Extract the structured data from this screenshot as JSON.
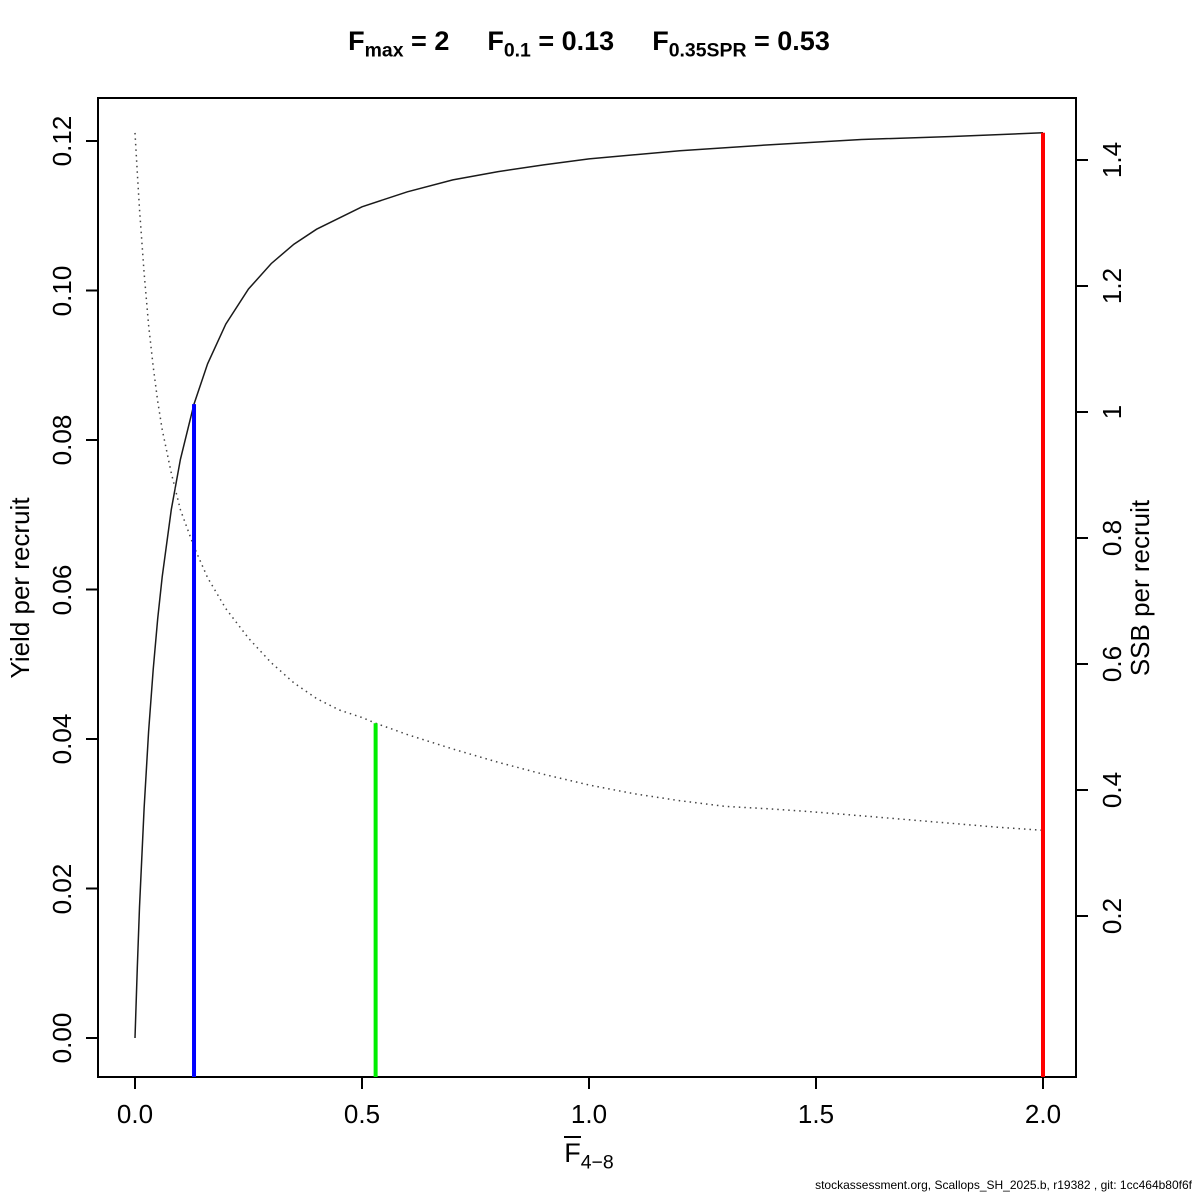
{
  "chart_data": {
    "type": "line",
    "title": {
      "eq": " = ",
      "parts": [
        {
          "base": "F",
          "sub": "max",
          "value": "2"
        },
        {
          "base": "F",
          "sub": "0.1",
          "value": "0.13"
        },
        {
          "base": "F",
          "sub": "0.35SPR",
          "value": "0.53"
        }
      ]
    },
    "xlabel": {
      "base": "F",
      "sub": "4−8",
      "overbar": true
    },
    "ylabel_left": "Yield per recruit",
    "ylabel_right": "SSB per recruit",
    "x_axis": {
      "ticks": [
        0,
        0.5,
        1,
        1.5,
        2
      ],
      "labels": [
        "0.0",
        "0.5",
        "1.0",
        "1.5",
        "2.0"
      ],
      "xlim": [
        -0.08,
        2.07
      ]
    },
    "y_axis_left": {
      "ticks": [
        0,
        0.02,
        0.04,
        0.06,
        0.08,
        0.1,
        0.12
      ],
      "labels": [
        "0.00",
        "0.02",
        "0.04",
        "0.06",
        "0.08",
        "0.10",
        "0.12"
      ],
      "ylim": [
        -0.005,
        0.126
      ]
    },
    "y_axis_right": {
      "ticks": [
        0.2,
        0.4,
        0.6,
        0.8,
        1,
        1.2,
        1.4
      ],
      "labels": [
        "0.2",
        "0.4",
        "0.6",
        "0.8",
        "1",
        "1.2",
        "1.4"
      ],
      "ylim": [
        -0.056,
        1.5
      ]
    },
    "grid": false,
    "legend": "none",
    "series": [
      {
        "name": "yield-per-recruit",
        "axis": "left",
        "style": "solid",
        "color": "#1a1a1a",
        "x": [
          0,
          0.005,
          0.01,
          0.02,
          0.03,
          0.04,
          0.05,
          0.06,
          0.08,
          0.1,
          0.13,
          0.16,
          0.2,
          0.25,
          0.3,
          0.35,
          0.4,
          0.5,
          0.6,
          0.7,
          0.8,
          0.9,
          1,
          1.2,
          1.4,
          1.6,
          1.8,
          2
        ],
        "y": [
          0,
          0.0094,
          0.0175,
          0.0307,
          0.041,
          0.0493,
          0.0561,
          0.0617,
          0.0707,
          0.0774,
          0.0848,
          0.0902,
          0.0955,
          0.1002,
          0.1036,
          0.1062,
          0.1082,
          0.1112,
          0.1132,
          0.1148,
          0.1159,
          0.1168,
          0.1176,
          0.1187,
          0.1195,
          0.1202,
          0.1206,
          0.1211
        ]
      },
      {
        "name": "ssb-per-recruit",
        "axis": "right",
        "style": "dotted",
        "color": "#444444",
        "x": [
          0,
          0.005,
          0.01,
          0.02,
          0.03,
          0.04,
          0.05,
          0.06,
          0.08,
          0.1,
          0.13,
          0.16,
          0.2,
          0.25,
          0.3,
          0.35,
          0.4,
          0.45,
          0.5,
          0.53,
          0.6,
          0.7,
          0.8,
          0.9,
          1,
          1.1,
          1.2,
          1.3,
          1.4,
          1.5,
          1.6,
          1.7,
          1.8,
          1.9,
          2
        ],
        "y": [
          1.443,
          1.38,
          1.322,
          1.221,
          1.138,
          1.072,
          1.017,
          0.972,
          0.903,
          0.845,
          0.786,
          0.737,
          0.688,
          0.641,
          0.602,
          0.57,
          0.545,
          0.527,
          0.515,
          0.506,
          0.488,
          0.465,
          0.444,
          0.425,
          0.408,
          0.394,
          0.383,
          0.374,
          0.37,
          0.365,
          0.359,
          0.353,
          0.347,
          0.341,
          0.336
        ]
      }
    ],
    "reference_lines": [
      {
        "name": "F0.1-line",
        "x": 0.13,
        "top_value": 0.0848,
        "top_axis": "left",
        "color": "#0000ff"
      },
      {
        "name": "F0.35SPR-line",
        "x": 0.53,
        "top_value": 0.506,
        "top_axis": "right",
        "color": "#00ee00"
      },
      {
        "name": "Fmax-line",
        "x": 2,
        "top_value": 0.1211,
        "top_axis": "left",
        "color": "#ff0000"
      }
    ],
    "footer": "stockassessment.org, Scallops_SH_2025.b, r19382 , git: 1cc464b80f6f"
  }
}
